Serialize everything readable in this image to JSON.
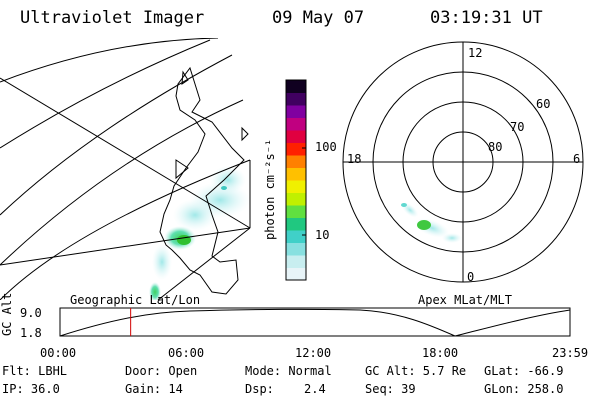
{
  "header": {
    "title": "Ultraviolet Imager",
    "date": "09 May 07",
    "time": "03:19:31 UT"
  },
  "geo_panel": {
    "label": "Geographic Lat/Lon"
  },
  "colorbar": {
    "unit_label": "photon cm⁻²s⁻¹",
    "ticks": [
      "100",
      "10"
    ],
    "colors": [
      "#e8f4f8",
      "#c8eef0",
      "#88e0e0",
      "#40d0c8",
      "#20c880",
      "#60e040",
      "#c0f000",
      "#f0f000",
      "#ffc000",
      "#ff8000",
      "#ff2000",
      "#e00040",
      "#c00080",
      "#8000a0",
      "#400060",
      "#100020"
    ]
  },
  "polar_panel": {
    "label": "Apex MLat/MLT",
    "mlt_labels": {
      "top": "12",
      "left": "18",
      "right": "6",
      "bottom": "0"
    },
    "lat_labels": [
      "60",
      "70",
      "80"
    ]
  },
  "altitude_plot": {
    "ylabel": "GC Alt",
    "yticks": [
      "9.0",
      "1.8"
    ],
    "xticks": [
      "00:00",
      "06:00",
      "12:00",
      "18:00",
      "23:59"
    ],
    "current_time_hours": 3.325
  },
  "info": {
    "flt": "Flt: LBHL",
    "door": "Door: Open",
    "mode": "Mode: Normal",
    "gcalt": "GC Alt: 5.7 Re",
    "glat": "GLat: -66.9",
    "ip": "IP: 36.0",
    "gain": "Gain: 14",
    "dsp_label": "Dsp:",
    "dsp_value": "2.4",
    "seq": "Seq: 39",
    "glon": "GLon: 258.0"
  }
}
